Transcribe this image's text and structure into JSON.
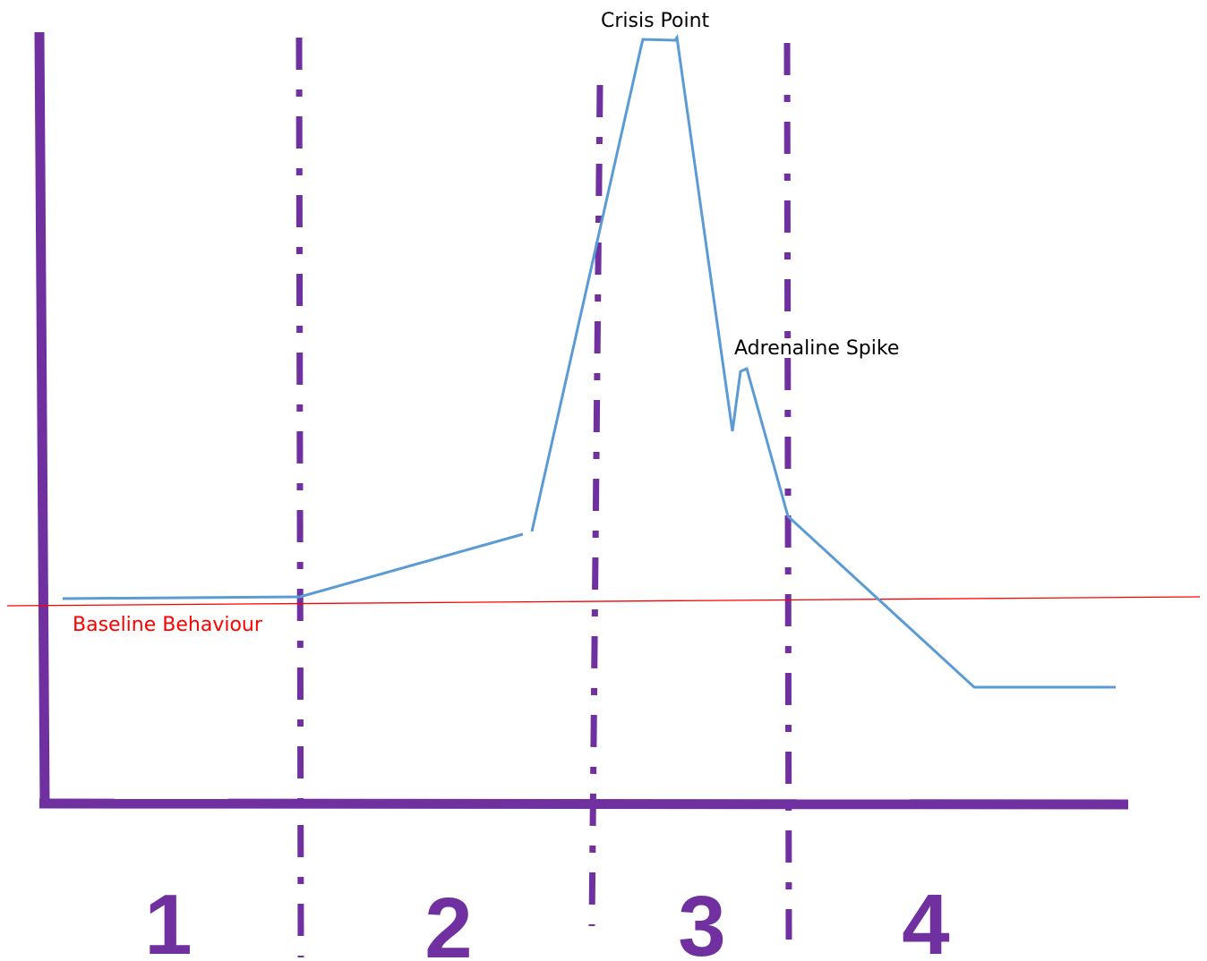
{
  "annotations": {
    "crisis_point": "Crisis Point",
    "adrenaline_spike": "Adrenaline Spike",
    "baseline_behaviour": "Baseline Behaviour"
  },
  "phases": [
    {
      "number": "1"
    },
    {
      "number": "2"
    },
    {
      "number": "3"
    },
    {
      "number": "4"
    }
  ],
  "colors": {
    "axes": "#7030a0",
    "dividers": "#7030a0",
    "phase_numbers": "#7030a0",
    "behaviour_curve": "#5b9bd5",
    "baseline_line": "#ff0000",
    "annotation_text": "#000000",
    "baseline_text": "#ff0000"
  }
}
